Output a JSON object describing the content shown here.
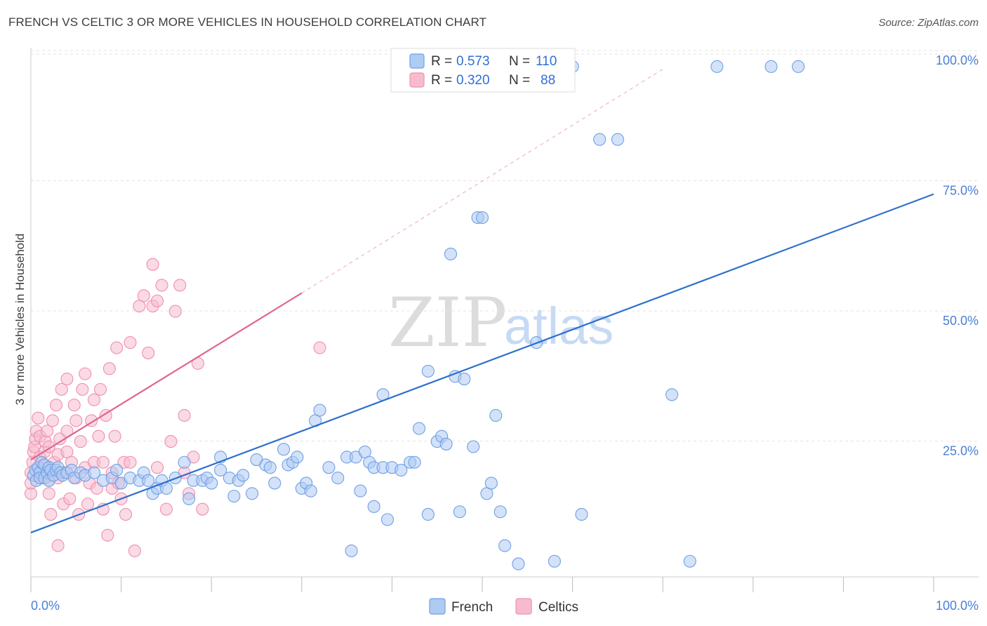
{
  "title": "FRENCH VS CELTIC 3 OR MORE VEHICLES IN HOUSEHOLD CORRELATION CHART",
  "source": "Source: ZipAtlas.com",
  "watermark": {
    "zip": "ZIP",
    "atlas": "atlas"
  },
  "legend": {
    "rows": [
      {
        "r_label": "R =",
        "r_value": "0.573",
        "n_label": "N =",
        "n_value": "110",
        "color": "#aecbf2"
      },
      {
        "r_label": "R =",
        "r_value": "0.320",
        "n_label": "N =",
        "n_value": "88",
        "color": "#f6bccd"
      }
    ]
  },
  "bottom_legend": [
    {
      "label": "French",
      "color": "#aecbf2"
    },
    {
      "label": "Celtics",
      "color": "#f6bccd"
    }
  ],
  "chart_data": {
    "type": "scatter",
    "title": "FRENCH VS CELTIC 3 OR MORE VEHICLES IN HOUSEHOLD CORRELATION CHART",
    "xlabel": "",
    "ylabel": "3 or more Vehicles in Household",
    "xlim": [
      0,
      100
    ],
    "ylim": [
      0,
      100
    ],
    "x_tick_labels": [
      "0.0%",
      "100.0%"
    ],
    "y_ticks": [
      25,
      50,
      75,
      100
    ],
    "y_tick_labels": [
      "25.0%",
      "50.0%",
      "75.0%",
      "100.0%"
    ],
    "grid": true,
    "series": [
      {
        "name": "French",
        "color": "#6fa0e6",
        "fill": "#aecbf2",
        "regression": {
          "x": [
            0,
            100
          ],
          "y": [
            8.5,
            73.5
          ],
          "color": "#2e6fd0"
        },
        "points": [
          [
            0.3,
            19.5
          ],
          [
            0.5,
            20.5
          ],
          [
            0.6,
            18.5
          ],
          [
            0.8,
            21
          ],
          [
            1,
            20
          ],
          [
            1,
            19
          ],
          [
            1.2,
            22
          ],
          [
            1.5,
            21.5
          ],
          [
            1.5,
            19
          ],
          [
            1.8,
            20
          ],
          [
            2,
            21
          ],
          [
            2,
            18.5
          ],
          [
            2.2,
            20.5
          ],
          [
            2.5,
            19.5
          ],
          [
            2.8,
            20.5
          ],
          [
            3,
            21
          ],
          [
            3.3,
            20
          ],
          [
            3.5,
            19.5
          ],
          [
            4,
            20
          ],
          [
            4.5,
            20.5
          ],
          [
            4.8,
            19
          ],
          [
            5.5,
            20
          ],
          [
            6,
            19.5
          ],
          [
            7,
            20
          ],
          [
            8,
            18.5
          ],
          [
            9,
            19
          ],
          [
            9.5,
            20.5
          ],
          [
            10,
            18
          ],
          [
            11,
            19
          ],
          [
            12,
            18.5
          ],
          [
            12.5,
            20
          ],
          [
            13,
            18.5
          ],
          [
            13.5,
            16
          ],
          [
            14,
            17
          ],
          [
            14.5,
            18.5
          ],
          [
            15,
            17
          ],
          [
            16,
            19
          ],
          [
            17,
            22
          ],
          [
            17.5,
            15
          ],
          [
            18,
            18.5
          ],
          [
            19,
            18.5
          ],
          [
            19.5,
            19
          ],
          [
            20,
            18
          ],
          [
            21,
            23
          ],
          [
            21,
            20.5
          ],
          [
            22,
            19
          ],
          [
            22.5,
            15.5
          ],
          [
            23,
            18.5
          ],
          [
            23.5,
            19.5
          ],
          [
            24.5,
            16
          ],
          [
            25,
            22.5
          ],
          [
            26,
            21.5
          ],
          [
            26.5,
            21
          ],
          [
            27,
            18
          ],
          [
            28,
            24.5
          ],
          [
            28.5,
            21.5
          ],
          [
            29,
            22
          ],
          [
            29.5,
            23
          ],
          [
            30,
            17
          ],
          [
            30.5,
            18
          ],
          [
            31,
            16.5
          ],
          [
            31.5,
            30
          ],
          [
            32,
            32
          ],
          [
            33,
            21
          ],
          [
            34,
            19
          ],
          [
            35,
            23
          ],
          [
            35.5,
            5
          ],
          [
            36,
            23
          ],
          [
            36.5,
            16.5
          ],
          [
            37,
            24
          ],
          [
            37.5,
            22
          ],
          [
            38,
            21
          ],
          [
            38,
            13.5
          ],
          [
            39,
            35
          ],
          [
            39,
            21
          ],
          [
            39.5,
            11
          ],
          [
            40,
            21
          ],
          [
            41,
            20.5
          ],
          [
            42,
            22
          ],
          [
            42.5,
            22
          ],
          [
            43,
            28.5
          ],
          [
            44,
            39.5
          ],
          [
            44,
            12
          ],
          [
            45,
            26
          ],
          [
            45.5,
            27
          ],
          [
            46,
            25.5
          ],
          [
            46.5,
            62
          ],
          [
            47,
            38.5
          ],
          [
            47.5,
            12.5
          ],
          [
            48,
            38
          ],
          [
            49,
            25
          ],
          [
            49.5,
            69
          ],
          [
            50,
            69
          ],
          [
            50.5,
            16
          ],
          [
            51,
            18
          ],
          [
            51.5,
            31
          ],
          [
            52,
            12.5
          ],
          [
            52.5,
            6
          ],
          [
            54,
            2.5
          ],
          [
            56,
            45
          ],
          [
            58,
            3
          ],
          [
            61,
            12
          ],
          [
            63,
            84
          ],
          [
            65,
            84
          ],
          [
            71,
            35
          ],
          [
            73,
            3
          ],
          [
            76,
            98
          ],
          [
            82,
            98
          ],
          [
            85,
            98
          ],
          [
            60,
            98
          ]
        ]
      },
      {
        "name": "Celtics",
        "color": "#ef8fb0",
        "fill": "#f6bccd",
        "regression": {
          "x": [
            0,
            30
          ],
          "y": [
            22.5,
            54.5
          ],
          "color": "#e0668f"
        },
        "regression_extension": {
          "x": [
            30,
            70
          ],
          "y": [
            54.5,
            97.5
          ]
        },
        "points": [
          [
            0,
            16
          ],
          [
            0,
            18
          ],
          [
            0,
            20
          ],
          [
            0.2,
            22
          ],
          [
            0.3,
            24
          ],
          [
            0.4,
            25
          ],
          [
            0.5,
            26.5
          ],
          [
            0.6,
            28
          ],
          [
            0.8,
            30.5
          ],
          [
            1,
            20
          ],
          [
            1,
            23
          ],
          [
            1,
            27
          ],
          [
            1.2,
            19
          ],
          [
            1.4,
            21.5
          ],
          [
            1.5,
            24
          ],
          [
            1.6,
            26
          ],
          [
            1.8,
            28
          ],
          [
            2,
            16
          ],
          [
            2,
            18.5
          ],
          [
            2,
            21
          ],
          [
            2,
            25
          ],
          [
            2.2,
            12
          ],
          [
            2.4,
            30
          ],
          [
            2.6,
            22
          ],
          [
            2.8,
            33
          ],
          [
            3,
            6
          ],
          [
            3,
            19
          ],
          [
            3,
            23.5
          ],
          [
            3.2,
            26.5
          ],
          [
            3.4,
            36
          ],
          [
            3.6,
            14
          ],
          [
            3.8,
            20
          ],
          [
            4,
            24
          ],
          [
            4,
            28
          ],
          [
            4,
            38
          ],
          [
            4.3,
            15
          ],
          [
            4.5,
            22
          ],
          [
            4.8,
            33
          ],
          [
            5,
            19
          ],
          [
            5,
            30
          ],
          [
            5.3,
            12
          ],
          [
            5.5,
            26
          ],
          [
            5.7,
            36
          ],
          [
            6,
            21
          ],
          [
            6,
            39
          ],
          [
            6.3,
            14
          ],
          [
            6.5,
            18
          ],
          [
            6.7,
            30
          ],
          [
            7,
            22
          ],
          [
            7,
            34
          ],
          [
            7.3,
            17
          ],
          [
            7.5,
            27
          ],
          [
            7.7,
            36
          ],
          [
            8,
            22
          ],
          [
            8,
            13
          ],
          [
            8.3,
            31
          ],
          [
            8.5,
            8
          ],
          [
            8.7,
            40
          ],
          [
            9,
            20
          ],
          [
            9,
            17
          ],
          [
            9.3,
            27
          ],
          [
            9.5,
            44
          ],
          [
            9.7,
            18
          ],
          [
            10,
            15
          ],
          [
            10.3,
            22
          ],
          [
            10.5,
            12
          ],
          [
            11,
            22
          ],
          [
            11,
            45
          ],
          [
            11.5,
            5
          ],
          [
            12,
            52
          ],
          [
            12.5,
            54
          ],
          [
            13,
            43
          ],
          [
            13.5,
            52
          ],
          [
            14,
            53
          ],
          [
            14,
            21
          ],
          [
            15,
            13
          ],
          [
            16,
            51
          ],
          [
            17,
            31
          ],
          [
            17.5,
            16
          ],
          [
            18,
            23
          ],
          [
            13.5,
            60
          ],
          [
            14.5,
            56
          ],
          [
            15.5,
            26
          ],
          [
            16.5,
            56
          ],
          [
            17,
            20
          ],
          [
            18.5,
            41
          ],
          [
            19,
            13
          ],
          [
            32,
            44
          ]
        ]
      }
    ]
  }
}
